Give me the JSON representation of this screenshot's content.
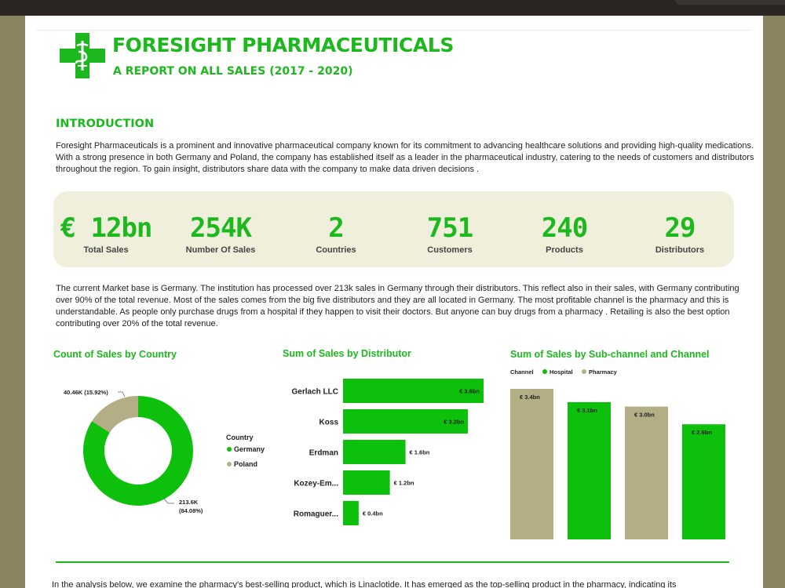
{
  "header": {
    "title": "FORESIGHT PHARMACEUTICALS",
    "subtitle": "A REPORT ON ALL SALES (2017 - 2020)",
    "logo_icon": "pharmacy-cross-icon",
    "brand_color": "#1db81d"
  },
  "intro": {
    "heading": "INTRODUCTION",
    "text": "Foresight Pharmaceuticals is a prominent and innovative pharmaceutical company known for its commitment to advancing healthcare solutions and providing high-quality medications. With a strong presence in both Germany and Poland, the company has established itself as a leader in the pharmaceutical industry, catering to the needs of customers and distributors throughout the region. To gain insight, distributors share data with the company to make data driven decisions ."
  },
  "kpis": [
    {
      "value": "€ 12bn",
      "label": "Total Sales"
    },
    {
      "value": "254K",
      "label": "Number Of Sales"
    },
    {
      "value": "2",
      "label": "Countries"
    },
    {
      "value": "751",
      "label": "Customers"
    },
    {
      "value": "240",
      "label": "Products"
    },
    {
      "value": "29",
      "label": "Distributors"
    }
  ],
  "market": {
    "text": "The current Market base is Germany. The institution has processed over 213k sales in Germany through their distributors. This reflect also in their sales, with Germany contributing over 90% of the total revenue. Most of the sales comes from the big five distributors and they are all located in Germany. The most profitable channel is the pharmacy and this is understandable. As people only purchase drugs from a hospital if they happen to visit their doctors. But anyone can buy drugs from a pharmacy . Retailing is also the best option  contributing over 20% of the total revenue."
  },
  "chart_data": [
    {
      "type": "pie",
      "title": "Count of Sales by Country",
      "legend_title": "Country",
      "legend_position": "right",
      "slices": [
        {
          "name": "Germany",
          "value": 213600,
          "label": "213.6K",
          "pct_label": "(84.08%)",
          "color": "#0cc00c"
        },
        {
          "name": "Poland",
          "value": 40460,
          "label": "40.46K (15.92%)",
          "color": "#b3ae86"
        }
      ]
    },
    {
      "type": "bar",
      "orientation": "horizontal",
      "title": "Sum of Sales by Distributor",
      "categories": [
        "Gerlach LLC",
        "Koss",
        "Erdman",
        "Kozey-Em...",
        "Romaguer..."
      ],
      "values": [
        3.6,
        3.2,
        1.6,
        1.2,
        0.4
      ],
      "value_labels": [
        "€ 3.6bn",
        "€ 3.2bn",
        "€ 1.6bn",
        "€ 1.2bn",
        "€ 0.4bn"
      ],
      "color": "#0cc00c"
    },
    {
      "type": "bar",
      "title": "Sum of Sales by Sub-channel and Channel",
      "legend_title": "Channel",
      "legend_position": "top-left",
      "series": [
        {
          "name": "Hospital",
          "color": "#0cc00c"
        },
        {
          "name": "Pharmacy",
          "color": "#b3ae86"
        }
      ],
      "bars": [
        {
          "channel": "Pharmacy",
          "value": 3.4,
          "label": "€ 3.4bn"
        },
        {
          "channel": "Hospital",
          "value": 3.1,
          "label": "€ 3.1bn"
        },
        {
          "channel": "Pharmacy",
          "value": 3.0,
          "label": "€ 3.0bn"
        },
        {
          "channel": "Hospital",
          "value": 2.6,
          "label": "€ 2.6bn"
        }
      ]
    }
  ],
  "footer": {
    "cut_text": "In the analysis below, we examine the pharmacy's best-selling product, which is Linaclotide. It has emerged as the top-selling product in the pharmacy, indicating its"
  }
}
